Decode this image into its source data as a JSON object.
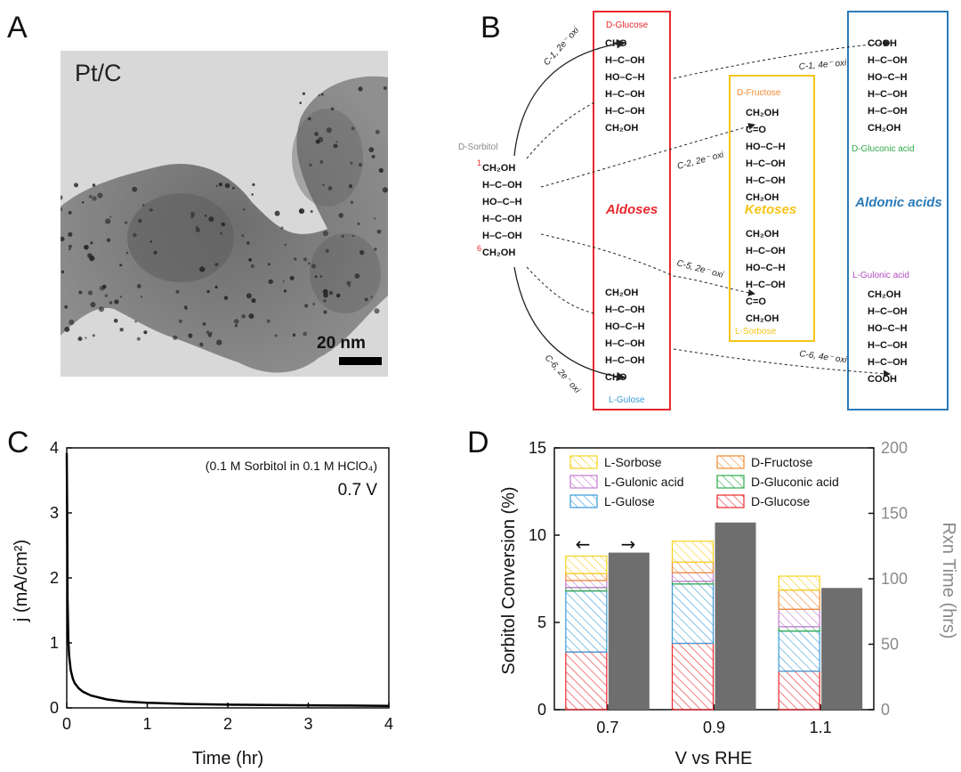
{
  "panels": {
    "a": "A",
    "b": "B",
    "c": "C",
    "d": "D"
  },
  "tem": {
    "label": "Pt/C",
    "scale_text": "20 nm"
  },
  "scheme": {
    "reactant": {
      "name": "D-Sorbitol",
      "rows": [
        "CH₂OH",
        "H–C–OH",
        "HO–C–H",
        "H–C–OH",
        "H–C–OH",
        "CH₂OH"
      ],
      "carbon_top": "1",
      "carbon_bottom": "6"
    },
    "groups": [
      {
        "label": "Aldoses",
        "color": "#e8282d"
      },
      {
        "label": "Ketoses",
        "color": "#f5c518"
      },
      {
        "label": "Aldonic acids",
        "color": "#2a7ab8"
      }
    ],
    "products": [
      {
        "name": "D-Glucose",
        "color": "#e8282d",
        "rows": [
          "CHO",
          "H–C–OH",
          "HO–C–H",
          "H–C–OH",
          "H–C–OH",
          "CH₂OH"
        ]
      },
      {
        "name": "L-Gulose",
        "color": "#3a9ad9",
        "rows": [
          "CH₂OH",
          "H–C–OH",
          "HO–C–H",
          "H–C–OH",
          "H–C–OH",
          "CHO"
        ]
      },
      {
        "name": "D-Fructose",
        "color": "#f08a30",
        "rows": [
          "CH₂OH",
          "C=O",
          "HO–C–H",
          "H–C–OH",
          "H–C–OH",
          "CH₂OH"
        ]
      },
      {
        "name": "L-Sorbose",
        "color": "#f5c518",
        "rows": [
          "CH₂OH",
          "H–C–OH",
          "HO–C–H",
          "H–C–OH",
          "C=O",
          "CH₂OH"
        ]
      },
      {
        "name": "D-Gluconic acid",
        "color": "#2eaa4a",
        "rows": [
          "COOH",
          "H–C–OH",
          "HO–C–H",
          "H–C–OH",
          "H–C–OH",
          "CH₂OH"
        ]
      },
      {
        "name": "L-Gulonic acid",
        "color": "#b44fc2",
        "rows": [
          "CH₂OH",
          "H–C–OH",
          "HO–C–H",
          "H–C–OH",
          "H–C–OH",
          "COOH"
        ]
      }
    ],
    "arrows": [
      "C-1, 2e⁻ oxi",
      "C-1, 4e⁻ oxi",
      "C-2, 2e⁻ oxi",
      "C-5, 2e⁻ oxi",
      "C-6, 2e⁻ oxi",
      "C-6, 4e⁻ oxi"
    ]
  },
  "chart_data": [
    {
      "type": "line",
      "annotation": "(0.1 M Sorbitol in 0.1 M HClO₄)",
      "annotation_voltage": "0.7 V",
      "xlabel": "Time (hr)",
      "ylabel": "j (mA/cm²)",
      "xlim": [
        0,
        4
      ],
      "ylim": [
        0,
        4
      ],
      "xticks": [
        0,
        1,
        2,
        3,
        4
      ],
      "yticks": [
        0,
        1,
        2,
        3,
        4
      ],
      "series": [
        {
          "x": [
            0,
            0.005,
            0.01,
            0.02,
            0.03,
            0.05,
            0.075,
            0.1,
            0.15,
            0.2,
            0.3,
            0.4,
            0.5,
            0.7,
            1.0,
            1.5,
            2.0,
            2.5,
            3.0,
            3.5,
            4.0
          ],
          "y": [
            3.92,
            3.0,
            1.7,
            1.05,
            0.8,
            0.58,
            0.45,
            0.38,
            0.3,
            0.25,
            0.19,
            0.16,
            0.13,
            0.1,
            0.08,
            0.06,
            0.05,
            0.045,
            0.04,
            0.035,
            0.03
          ]
        }
      ]
    },
    {
      "type": "bar",
      "stacked": true,
      "categories": [
        "0.7",
        "0.9",
        "1.1"
      ],
      "xlabel": "V vs RHE",
      "ylabel": "Sorbitol Conversion (%)",
      "ylabel_right": "Rxn Time (hrs)",
      "ylim": [
        0,
        15
      ],
      "ylim_right": [
        0,
        200
      ],
      "yticks": [
        0,
        5,
        10,
        15
      ],
      "yticks_right": [
        0,
        50,
        100,
        150,
        200
      ],
      "legend": [
        "L-Sorbose",
        "D-Fructose",
        "L-Gulonic acid",
        "D-Gluconic acid",
        "L-Gulose",
        "D-Glucose"
      ],
      "legend_colors": [
        "#f5d21c",
        "#f08a30",
        "#c47ad0",
        "#2eaa4a",
        "#3a9ad9",
        "#e8282d"
      ],
      "series": [
        {
          "name": "D-Glucose",
          "color": "#e8282d",
          "values": [
            3.3,
            3.8,
            2.2
          ]
        },
        {
          "name": "L-Gulose",
          "color": "#3a9ad9",
          "values": [
            3.5,
            3.4,
            2.3
          ]
        },
        {
          "name": "D-Gluconic acid",
          "color": "#2eaa4a",
          "values": [
            0.2,
            0.15,
            0.25
          ]
        },
        {
          "name": "L-Gulonic acid",
          "color": "#c47ad0",
          "values": [
            0.4,
            0.5,
            1.0
          ]
        },
        {
          "name": "D-Fructose",
          "color": "#f08a30",
          "values": [
            0.4,
            0.6,
            1.1
          ]
        },
        {
          "name": "L-Sorbose",
          "color": "#f5d21c",
          "values": [
            1.0,
            1.2,
            0.8
          ]
        }
      ],
      "rxn_time": [
        120,
        143,
        93
      ],
      "rxn_time_color": "#6e6e6e",
      "arrow_left": "←",
      "arrow_right": "→"
    }
  ]
}
